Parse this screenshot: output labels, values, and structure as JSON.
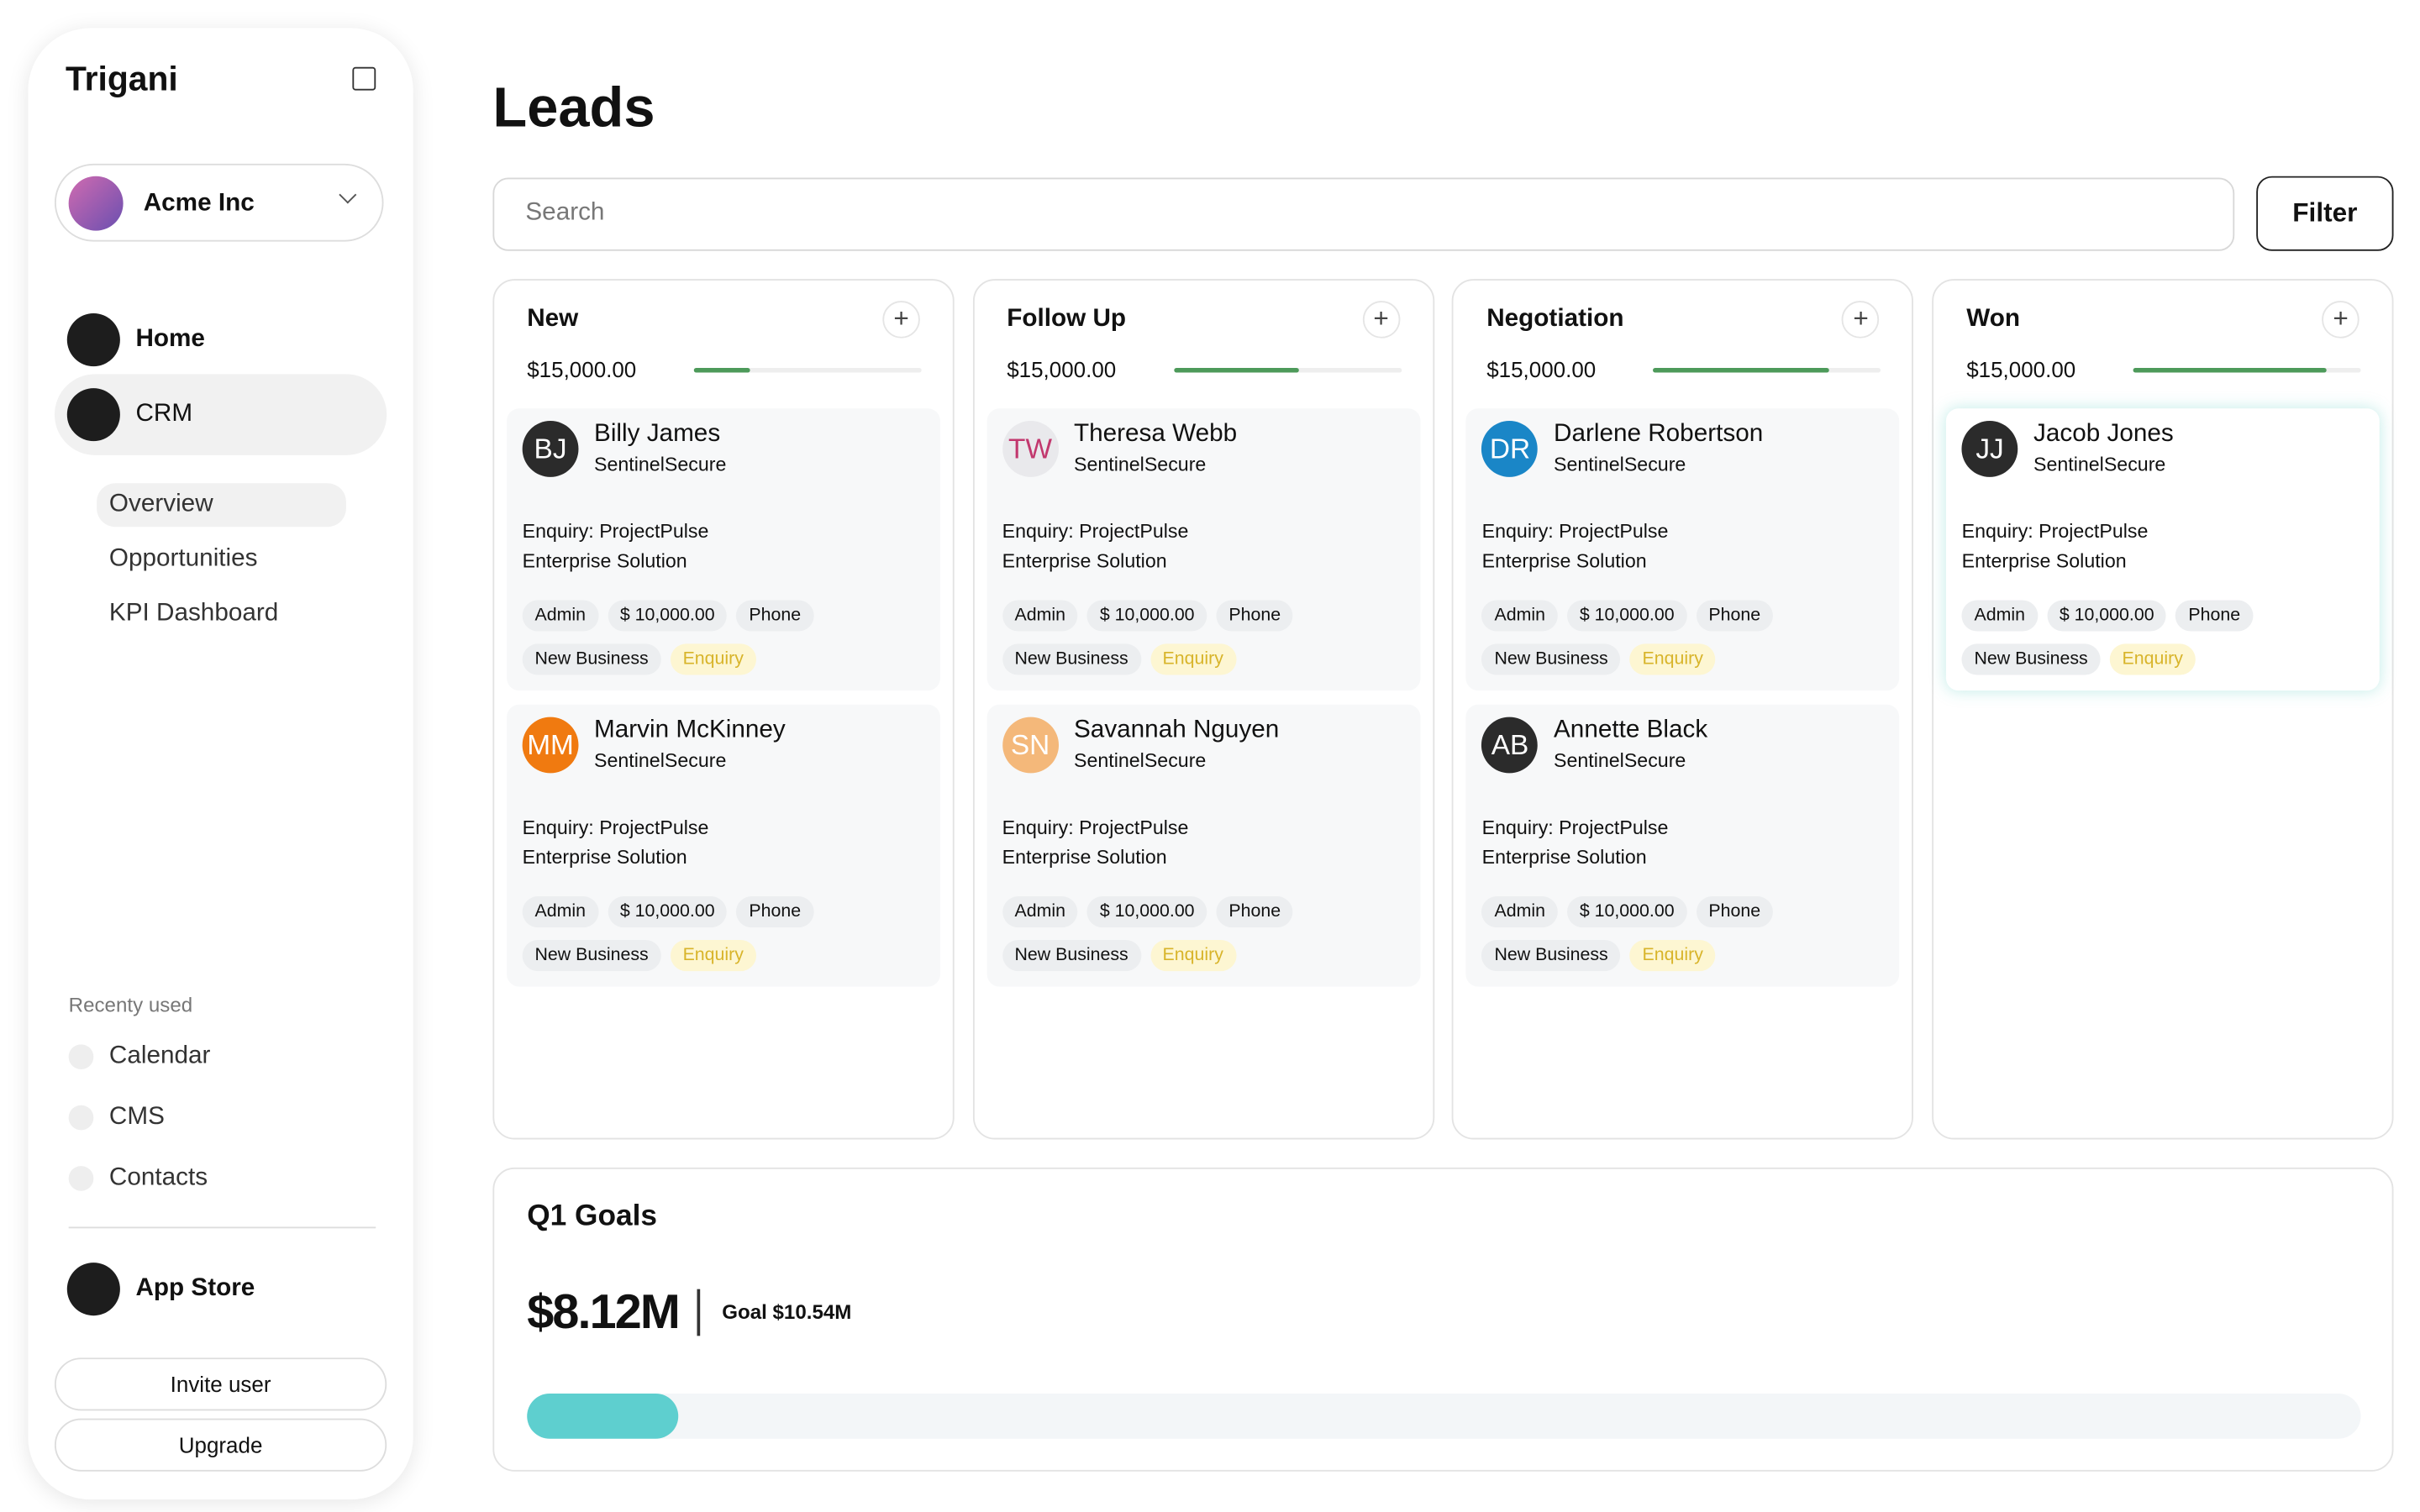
{
  "sidebar": {
    "brand": "Trigani",
    "workspace": "Acme Inc",
    "nav": [
      "Home",
      "CRM"
    ],
    "crm_sub": [
      "Overview",
      "Opportunities",
      "KPI Dashboard"
    ],
    "recent_title": "Recenty used",
    "recent": [
      "Calendar",
      "CMS",
      "Contacts"
    ],
    "app_store": "App Store",
    "invite": "Invite user",
    "upgrade": "Upgrade"
  },
  "header": {
    "title": "Leads",
    "search_placeholder": "Search",
    "filter": "Filter"
  },
  "columns": [
    {
      "title": "New",
      "amount": "$15,000.00",
      "cards": [
        {
          "initials": "BJ",
          "color": "#2b2b2b",
          "text_color": "#ffffff",
          "name": "Billy James",
          "company": "SentinelSecure",
          "enquiry": [
            "Enquiry: ProjectPulse",
            "Enterprise Solution"
          ],
          "tags": [
            "Admin",
            "$ 10,000.00",
            "Phone",
            "New Business",
            "Enquiry"
          ]
        },
        {
          "initials": "MM",
          "color": "#f07a10",
          "text_color": "#ffffff",
          "name": "Marvin McKinney",
          "company": "SentinelSecure",
          "enquiry": [
            "Enquiry: ProjectPulse",
            "Enterprise Solution"
          ],
          "tags": [
            "Admin",
            "$ 10,000.00",
            "Phone",
            "New Business",
            "Enquiry"
          ]
        }
      ]
    },
    {
      "title": "Follow Up",
      "amount": "$15,000.00",
      "cards": [
        {
          "initials": "TW",
          "color": "#e9e9ec",
          "text_color": "#c2386e",
          "name": "Theresa Webb",
          "company": "SentinelSecure",
          "enquiry": [
            "Enquiry: ProjectPulse",
            "Enterprise Solution"
          ],
          "tags": [
            "Admin",
            "$ 10,000.00",
            "Phone",
            "New Business",
            "Enquiry"
          ]
        },
        {
          "initials": "SN",
          "color": "#f4b87a",
          "text_color": "#ffffff",
          "name": "Savannah Nguyen",
          "company": "SentinelSecure",
          "enquiry": [
            "Enquiry: ProjectPulse",
            "Enterprise Solution"
          ],
          "tags": [
            "Admin",
            "$ 10,000.00",
            "Phone",
            "New Business",
            "Enquiry"
          ]
        }
      ]
    },
    {
      "title": "Negotiation",
      "amount": "$15,000.00",
      "cards": [
        {
          "initials": "DR",
          "color": "#1a86c7",
          "text_color": "#ffffff",
          "name": "Darlene Robertson",
          "company": "SentinelSecure",
          "enquiry": [
            "Enquiry: ProjectPulse",
            "Enterprise Solution"
          ],
          "tags": [
            "Admin",
            "$ 10,000.00",
            "Phone",
            "New Business",
            "Enquiry"
          ]
        },
        {
          "initials": "AB",
          "color": "#2b2b2b",
          "text_color": "#ffffff",
          "name": "Annette Black",
          "company": "SentinelSecure",
          "enquiry": [
            "Enquiry: ProjectPulse",
            "Enterprise Solution"
          ],
          "tags": [
            "Admin",
            "$ 10,000.00",
            "Phone",
            "New Business",
            "Enquiry"
          ]
        }
      ]
    },
    {
      "title": "Won",
      "amount": "$15,000.00",
      "cards": [
        {
          "initials": "JJ",
          "color": "#2b2b2b",
          "text_color": "#ffffff",
          "name": "Jacob Jones",
          "company": "SentinelSecure",
          "enquiry": [
            "Enquiry: ProjectPulse",
            "Enterprise Solution"
          ],
          "tags": [
            "Admin",
            "$ 10,000.00",
            "Phone",
            "New Business",
            "Enquiry"
          ]
        }
      ]
    }
  ],
  "goals": {
    "title": "Q1 Goals",
    "value": "$8.12M",
    "goal": "Goal $10.54M"
  }
}
